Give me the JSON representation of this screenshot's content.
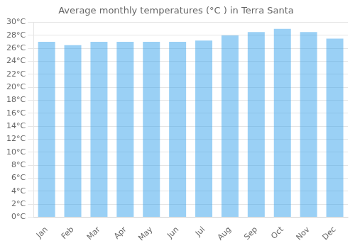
{
  "chart_data": {
    "type": "bar",
    "title": "Average monthly temperatures (°C ) in Terra Santa",
    "categories": [
      "Jan",
      "Feb",
      "Mar",
      "Apr",
      "May",
      "Jun",
      "Jul",
      "Aug",
      "Sep",
      "Oct",
      "Nov",
      "Dec"
    ],
    "values": [
      27.0,
      26.5,
      27.0,
      27.0,
      27.0,
      27.0,
      27.2,
      28.0,
      28.5,
      29.0,
      28.5,
      27.5
    ],
    "ylim": [
      0,
      30
    ],
    "yticks": [
      {
        "value": 0,
        "label": "0°C"
      },
      {
        "value": 2,
        "label": "2°C"
      },
      {
        "value": 4,
        "label": "4°C"
      },
      {
        "value": 6,
        "label": "6°C"
      },
      {
        "value": 8,
        "label": "8°C"
      },
      {
        "value": 10,
        "label": "10°C"
      },
      {
        "value": 12,
        "label": "12°C"
      },
      {
        "value": 14,
        "label": "14°C"
      },
      {
        "value": 16,
        "label": "16°C"
      },
      {
        "value": 18,
        "label": "18°C"
      },
      {
        "value": 20,
        "label": "20°C"
      },
      {
        "value": 22,
        "label": "22°C"
      },
      {
        "value": 24,
        "label": "24°C"
      },
      {
        "value": 26,
        "label": "26°C"
      },
      {
        "value": 28,
        "label": "28°C"
      },
      {
        "value": 30,
        "label": "30°C"
      }
    ],
    "grid": true
  }
}
